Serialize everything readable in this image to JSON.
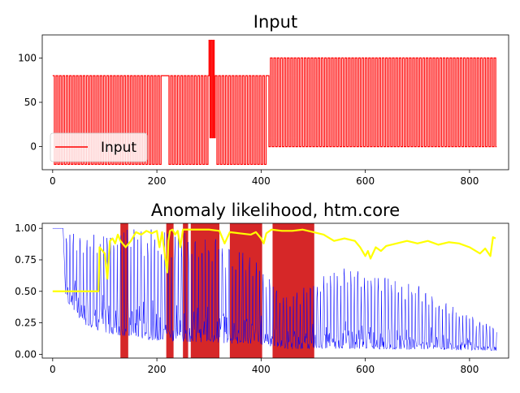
{
  "chart_data": [
    {
      "type": "line",
      "title": "Input",
      "xlabel": "",
      "ylabel": "",
      "xlim": [
        -20,
        875
      ],
      "ylim": [
        -26,
        126
      ],
      "x_ticks": [
        0,
        200,
        400,
        600,
        800
      ],
      "y_ticks": [
        0,
        50,
        100
      ],
      "legend": {
        "placement": "lower-left",
        "entries": [
          "Input"
        ]
      },
      "series": [
        {
          "name": "Input",
          "color": "#ff0000",
          "square_wave_segments": [
            {
              "x_start": 0,
              "x_end": 210,
              "low": -20,
              "high": 80,
              "period": 6.5
            },
            {
              "x_start": 210,
              "x_end": 220,
              "low": 80,
              "high": 80,
              "period": 10
            },
            {
              "x_start": 220,
              "x_end": 300,
              "low": -20,
              "high": 80,
              "period": 6.5
            },
            {
              "x_start": 300,
              "x_end": 312,
              "low": 10,
              "high": 120,
              "period": 4
            },
            {
              "x_start": 312,
              "x_end": 412,
              "low": -20,
              "high": 80,
              "period": 6.5
            },
            {
              "x_start": 412,
              "x_end": 418,
              "low": 0,
              "high": 80,
              "period": 6
            },
            {
              "x_start": 418,
              "x_end": 852,
              "low": 0,
              "high": 100,
              "period": 6.5
            }
          ]
        }
      ]
    },
    {
      "type": "line",
      "title": "Anomaly likelihood, htm.core",
      "xlabel": "",
      "ylabel": "",
      "xlim": [
        -20,
        875
      ],
      "ylim": [
        -0.03,
        1.04
      ],
      "x_ticks": [
        0,
        200,
        400,
        600,
        800
      ],
      "y_ticks": [
        0.0,
        0.25,
        0.5,
        0.75,
        1.0
      ],
      "series": [
        {
          "name": "",
          "color": "#0000ff",
          "role": "raw anomaly score (oscillating)",
          "envelope": [
            {
              "x": 0,
              "low": 1.0,
              "high": 1.0
            },
            {
              "x": 20,
              "low": 1.0,
              "high": 1.0
            },
            {
              "x": 25,
              "low": 0.4,
              "high": 1.0
            },
            {
              "x": 60,
              "low": 0.2,
              "high": 1.0
            },
            {
              "x": 100,
              "low": 0.12,
              "high": 1.0
            },
            {
              "x": 200,
              "low": 0.06,
              "high": 1.0
            },
            {
              "x": 300,
              "low": 0.05,
              "high": 0.95
            },
            {
              "x": 400,
              "low": 0.04,
              "high": 0.75
            },
            {
              "x": 450,
              "low": 0.02,
              "high": 0.45
            },
            {
              "x": 550,
              "low": 0.01,
              "high": 0.7
            },
            {
              "x": 700,
              "low": 0.01,
              "high": 0.55
            },
            {
              "x": 852,
              "low": 0.02,
              "high": 0.2
            }
          ]
        },
        {
          "name": "",
          "color": "#ffff00",
          "role": "anomaly likelihood",
          "x": [
            0,
            60,
            88,
            90,
            100,
            105,
            110,
            115,
            120,
            125,
            130,
            140,
            150,
            160,
            170,
            180,
            190,
            200,
            205,
            210,
            215,
            220,
            222,
            225,
            230,
            235,
            240,
            245,
            250,
            260,
            280,
            300,
            320,
            330,
            340,
            360,
            380,
            390,
            400,
            405,
            410,
            420,
            440,
            460,
            480,
            500,
            520,
            540,
            560,
            580,
            590,
            600,
            605,
            610,
            620,
            630,
            640,
            660,
            680,
            700,
            720,
            740,
            760,
            780,
            800,
            820,
            830,
            840,
            845,
            850
          ],
          "y": [
            0.5,
            0.5,
            0.5,
            0.85,
            0.8,
            0.6,
            0.9,
            0.92,
            0.88,
            0.95,
            0.9,
            0.85,
            0.9,
            0.97,
            0.95,
            0.98,
            0.96,
            0.98,
            0.85,
            0.97,
            0.8,
            0.65,
            0.9,
            0.98,
            0.99,
            0.95,
            0.98,
            0.85,
            0.99,
            0.99,
            0.99,
            0.99,
            0.98,
            0.88,
            0.97,
            0.96,
            0.95,
            0.97,
            0.92,
            0.88,
            0.96,
            0.99,
            0.98,
            0.98,
            0.99,
            0.97,
            0.95,
            0.9,
            0.92,
            0.9,
            0.85,
            0.78,
            0.82,
            0.76,
            0.85,
            0.82,
            0.86,
            0.88,
            0.9,
            0.88,
            0.9,
            0.87,
            0.89,
            0.88,
            0.85,
            0.8,
            0.84,
            0.78,
            0.93,
            0.92
          ]
        }
      ],
      "highlight_spans": [
        {
          "x_start": 130,
          "x_end": 145
        },
        {
          "x_start": 218,
          "x_end": 232
        },
        {
          "x_start": 250,
          "x_end": 260
        },
        {
          "x_start": 265,
          "x_end": 320
        },
        {
          "x_start": 340,
          "x_end": 402
        },
        {
          "x_start": 422,
          "x_end": 502
        }
      ],
      "highlight_color": "#d62728"
    }
  ]
}
